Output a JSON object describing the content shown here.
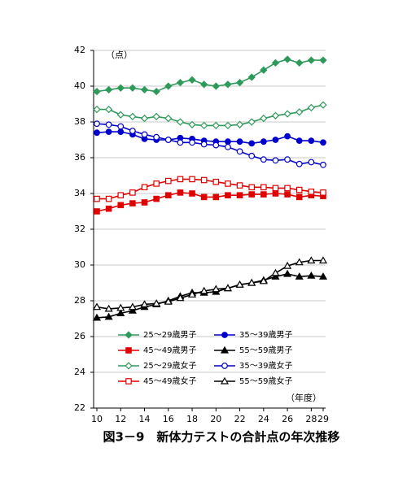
{
  "chart_data": {
    "type": "line",
    "title": "図3－9　新体力テストの合計点の年次推移",
    "y_unit": "（点）",
    "x_unit": "（年度）",
    "x": [
      10,
      11,
      12,
      13,
      14,
      15,
      16,
      17,
      18,
      19,
      20,
      21,
      22,
      23,
      24,
      25,
      26,
      27,
      28,
      29
    ],
    "xlim": [
      10,
      29
    ],
    "xticks": [
      10,
      12,
      14,
      16,
      18,
      20,
      22,
      24,
      26,
      28,
      29
    ],
    "ylim": [
      22,
      42
    ],
    "yticks": [
      22,
      24,
      26,
      28,
      30,
      32,
      34,
      36,
      38,
      40,
      42
    ],
    "grid": true,
    "legend": "bottom",
    "series": [
      {
        "name": "25～29歳男子",
        "color": "#2e9a5a",
        "marker": "diamond",
        "filled": true,
        "values": [
          39.7,
          39.8,
          39.9,
          39.9,
          39.8,
          39.7,
          40.0,
          40.2,
          40.35,
          40.1,
          40.0,
          40.1,
          40.2,
          40.5,
          40.9,
          41.3,
          41.5,
          41.3,
          41.45,
          41.45
        ]
      },
      {
        "name": "35～39歳男子",
        "color": "#0000cc",
        "marker": "circle",
        "filled": true,
        "values": [
          37.4,
          37.45,
          37.45,
          37.3,
          37.05,
          37.0,
          37.0,
          37.1,
          37.05,
          36.95,
          36.9,
          36.9,
          36.9,
          36.8,
          36.9,
          37.0,
          37.2,
          36.95,
          36.95,
          36.85
        ]
      },
      {
        "name": "45～49歳男子",
        "color": "#e00000",
        "marker": "square",
        "filled": true,
        "values": [
          33.0,
          33.15,
          33.35,
          33.45,
          33.5,
          33.7,
          33.9,
          34.05,
          34.0,
          33.8,
          33.8,
          33.9,
          33.9,
          33.95,
          33.95,
          34.0,
          33.95,
          33.8,
          33.9,
          33.85
        ]
      },
      {
        "name": "55～59歳男子",
        "color": "#000000",
        "marker": "triangle",
        "filled": true,
        "values": [
          27.05,
          27.1,
          27.3,
          27.45,
          27.65,
          27.8,
          28.0,
          28.25,
          28.45,
          28.45,
          28.5,
          28.7,
          28.9,
          29.0,
          29.15,
          29.35,
          29.5,
          29.35,
          29.4,
          29.35
        ]
      },
      {
        "name": "25～29歳女子",
        "color": "#2e9a5a",
        "marker": "diamond",
        "filled": false,
        "values": [
          38.7,
          38.7,
          38.4,
          38.3,
          38.2,
          38.3,
          38.2,
          38.0,
          37.85,
          37.8,
          37.8,
          37.8,
          37.85,
          38.0,
          38.2,
          38.35,
          38.45,
          38.55,
          38.8,
          38.95
        ]
      },
      {
        "name": "35～39歳女子",
        "color": "#0000cc",
        "marker": "circle",
        "filled": false,
        "values": [
          37.9,
          37.85,
          37.75,
          37.5,
          37.3,
          37.15,
          37.0,
          36.85,
          36.85,
          36.75,
          36.7,
          36.6,
          36.35,
          36.1,
          35.9,
          35.85,
          35.9,
          35.65,
          35.75,
          35.6
        ]
      },
      {
        "name": "45～49歳女子",
        "color": "#e00000",
        "marker": "square",
        "filled": false,
        "values": [
          33.7,
          33.7,
          33.9,
          34.05,
          34.35,
          34.55,
          34.7,
          34.8,
          34.8,
          34.75,
          34.65,
          34.55,
          34.45,
          34.35,
          34.35,
          34.3,
          34.3,
          34.2,
          34.1,
          34.05
        ]
      },
      {
        "name": "55～59歳女子",
        "color": "#000000",
        "marker": "triangle",
        "filled": false,
        "values": [
          27.65,
          27.55,
          27.6,
          27.65,
          27.8,
          27.85,
          27.95,
          28.15,
          28.35,
          28.55,
          28.65,
          28.7,
          28.9,
          29.0,
          29.1,
          29.55,
          29.95,
          30.15,
          30.25,
          30.25
        ]
      }
    ]
  }
}
